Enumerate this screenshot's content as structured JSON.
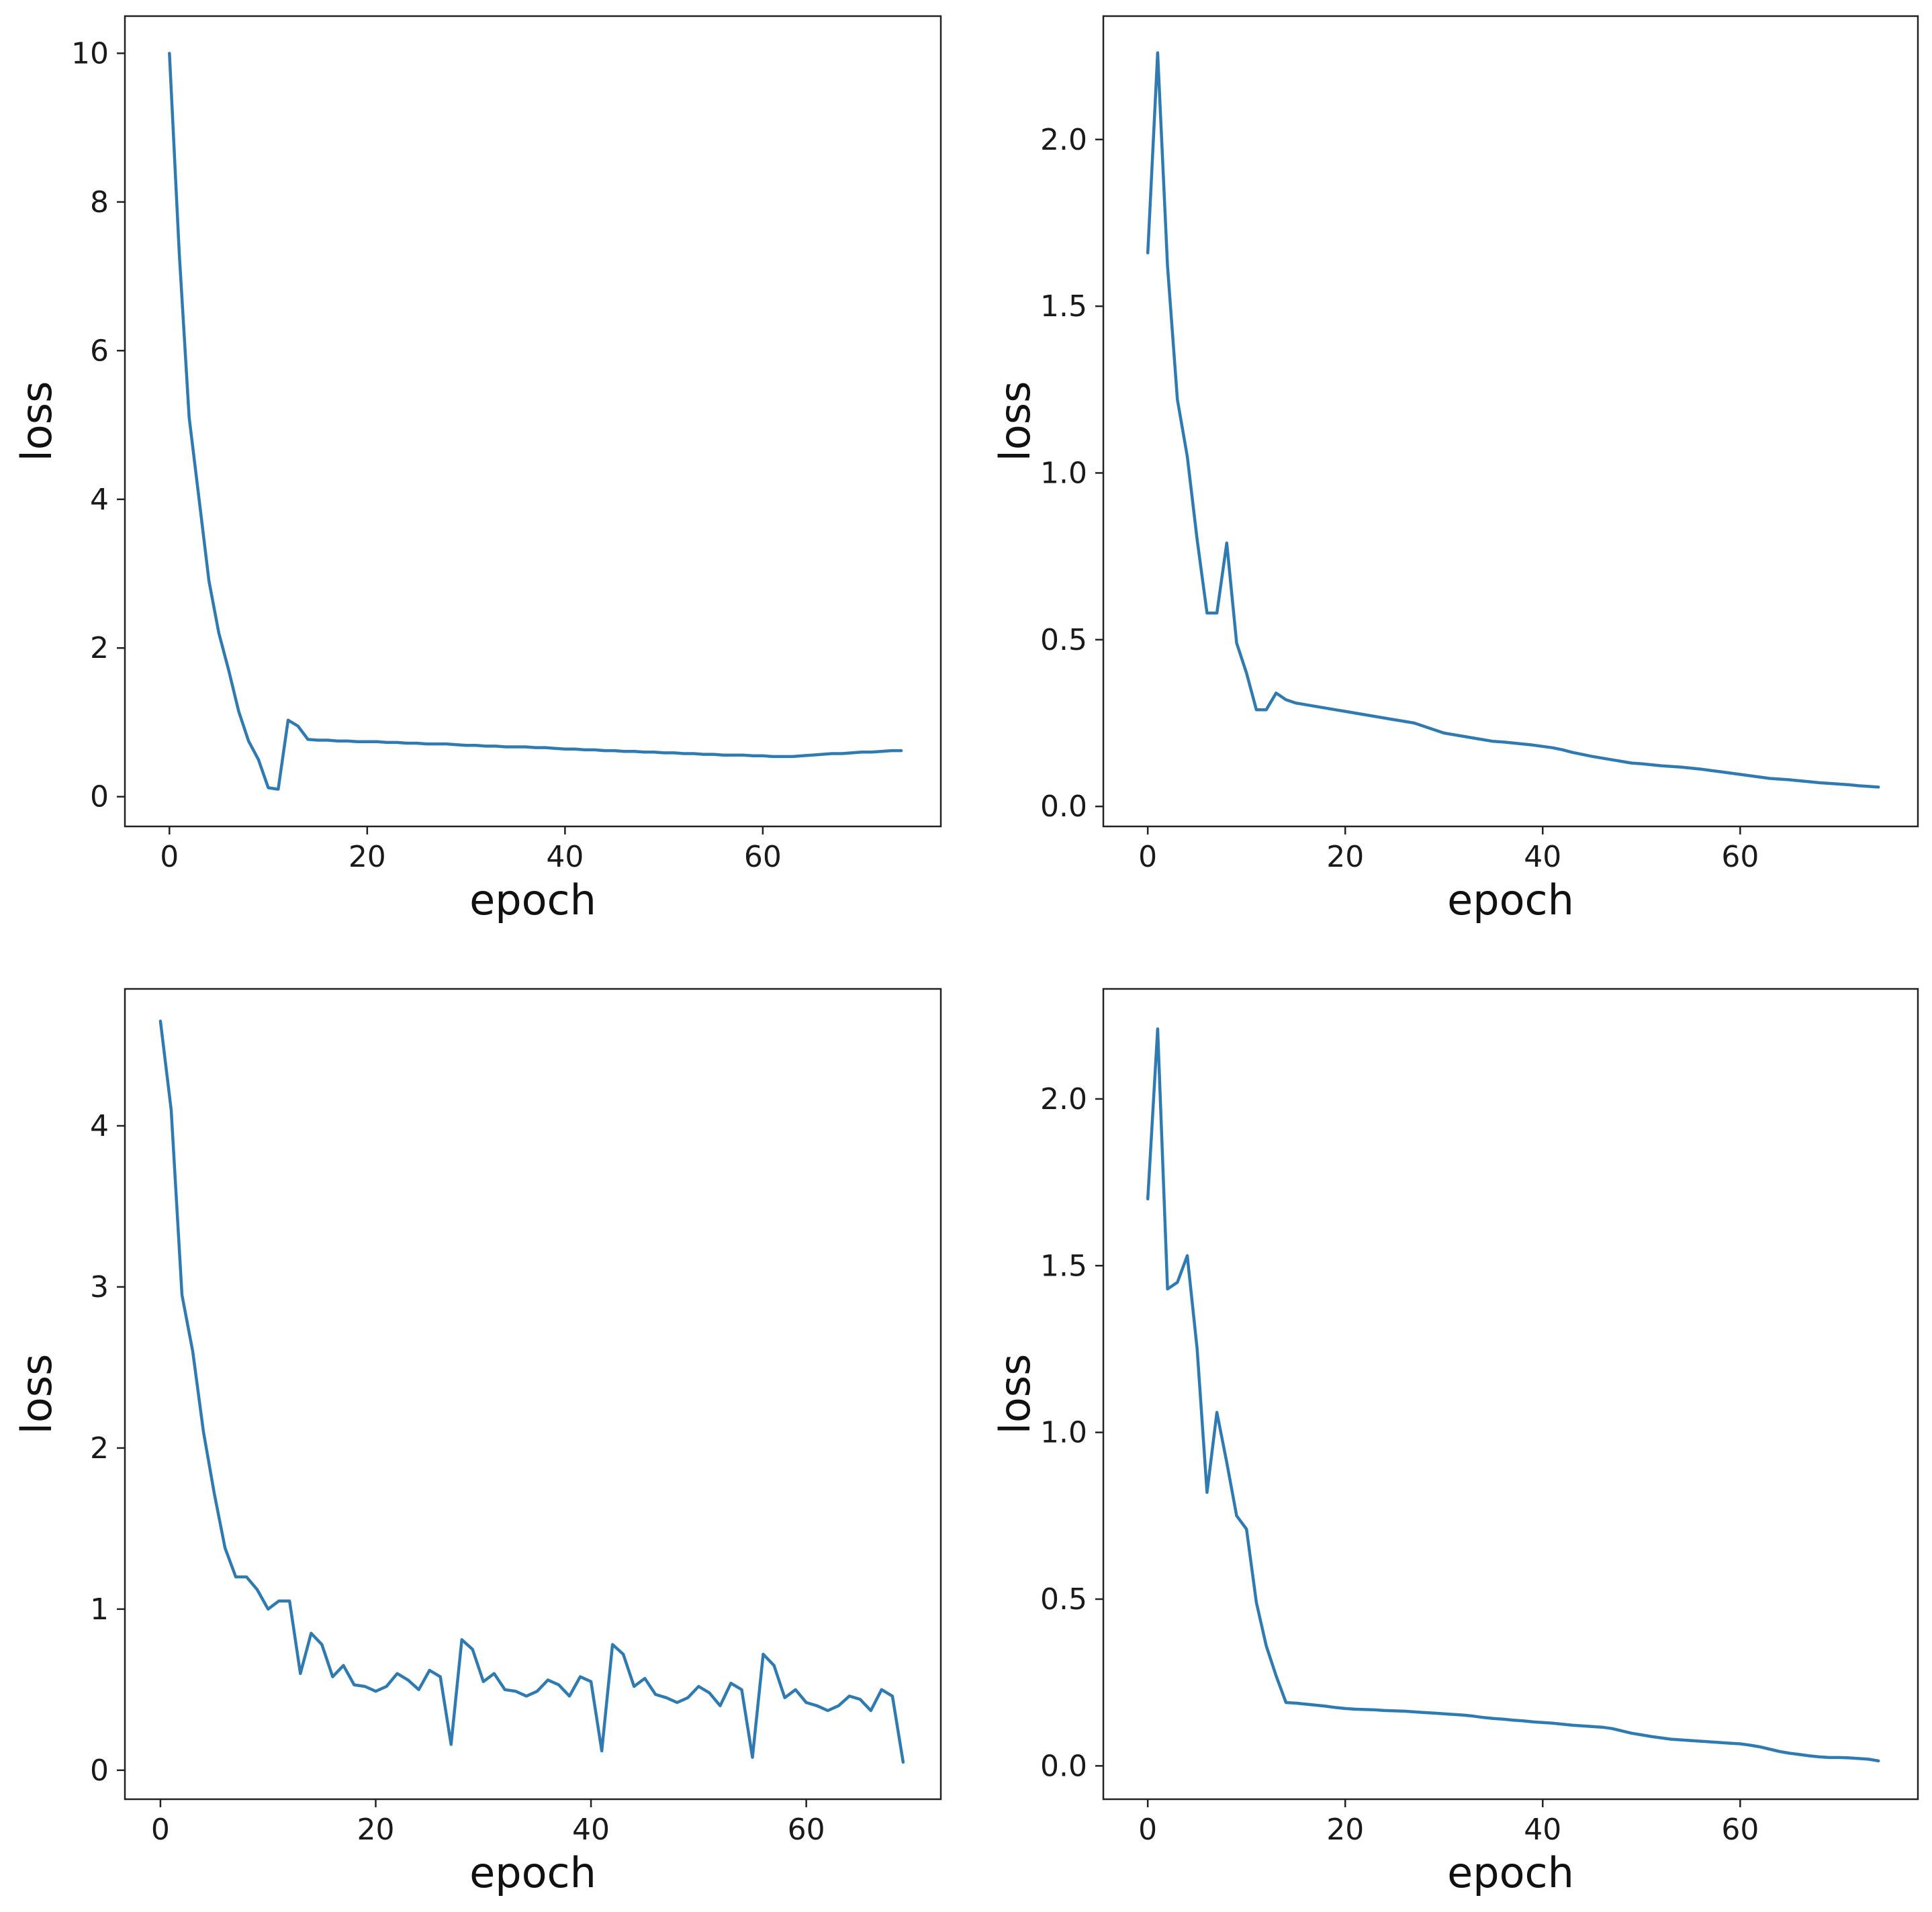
{
  "colors": {
    "line": "#2f7bb1",
    "axis": "#222222",
    "text": "#1a1a1a"
  },
  "chart_data": [
    {
      "type": "line",
      "position": "top-left",
      "xlabel": "epoch",
      "ylabel": "loss",
      "xlim": [
        -4.5,
        78
      ],
      "ylim": [
        -0.4,
        10.5
      ],
      "xticks": [
        0,
        20,
        40,
        60
      ],
      "xtick_labels": [
        "0",
        "20",
        "40",
        "60"
      ],
      "yticks": [
        0,
        2,
        4,
        6,
        8,
        10
      ],
      "ytick_labels": [
        "0",
        "2",
        "4",
        "6",
        "8",
        "10"
      ],
      "series": [
        {
          "name": "loss",
          "x": [
            0,
            1,
            2,
            3,
            4,
            5,
            6,
            7,
            8,
            9,
            10,
            11,
            12,
            13,
            14,
            15,
            16,
            17,
            18,
            19,
            20,
            21,
            22,
            23,
            24,
            25,
            26,
            27,
            28,
            29,
            30,
            31,
            32,
            33,
            34,
            35,
            36,
            37,
            38,
            39,
            40,
            41,
            42,
            43,
            44,
            45,
            46,
            47,
            48,
            49,
            50,
            51,
            52,
            53,
            54,
            55,
            56,
            57,
            58,
            59,
            60,
            61,
            62,
            63,
            64,
            65,
            66,
            67,
            68,
            69,
            70,
            71,
            72,
            73,
            74
          ],
          "values": [
            10.0,
            7.3,
            5.1,
            4.0,
            2.9,
            2.2,
            1.7,
            1.15,
            0.75,
            0.5,
            0.12,
            0.1,
            1.03,
            0.95,
            0.77,
            0.76,
            0.76,
            0.75,
            0.75,
            0.74,
            0.74,
            0.74,
            0.73,
            0.73,
            0.72,
            0.72,
            0.71,
            0.71,
            0.71,
            0.7,
            0.69,
            0.69,
            0.68,
            0.68,
            0.67,
            0.67,
            0.67,
            0.66,
            0.66,
            0.65,
            0.64,
            0.64,
            0.63,
            0.63,
            0.62,
            0.62,
            0.61,
            0.61,
            0.6,
            0.6,
            0.59,
            0.59,
            0.58,
            0.58,
            0.57,
            0.57,
            0.56,
            0.56,
            0.56,
            0.55,
            0.55,
            0.54,
            0.54,
            0.54,
            0.55,
            0.56,
            0.57,
            0.58,
            0.58,
            0.59,
            0.6,
            0.6,
            0.61,
            0.62,
            0.62
          ]
        }
      ]
    },
    {
      "type": "line",
      "position": "top-right",
      "xlabel": "epoch",
      "ylabel": "loss",
      "xlim": [
        -4.5,
        78
      ],
      "ylim": [
        -0.06,
        2.37
      ],
      "xticks": [
        0,
        20,
        40,
        60
      ],
      "xtick_labels": [
        "0",
        "20",
        "40",
        "60"
      ],
      "yticks": [
        0.0,
        0.5,
        1.0,
        1.5,
        2.0
      ],
      "ytick_labels": [
        "0.0",
        "0.5",
        "1.0",
        "1.5",
        "2.0"
      ],
      "series": [
        {
          "name": "loss",
          "x": [
            0,
            1,
            2,
            3,
            4,
            5,
            6,
            7,
            8,
            9,
            10,
            11,
            12,
            13,
            14,
            15,
            16,
            17,
            18,
            19,
            20,
            21,
            22,
            23,
            24,
            25,
            26,
            27,
            28,
            29,
            30,
            31,
            32,
            33,
            34,
            35,
            36,
            37,
            38,
            39,
            40,
            41,
            42,
            43,
            44,
            45,
            46,
            47,
            48,
            49,
            50,
            51,
            52,
            53,
            54,
            55,
            56,
            57,
            58,
            59,
            60,
            61,
            62,
            63,
            64,
            65,
            66,
            67,
            68,
            69,
            70,
            71,
            72,
            73,
            74
          ],
          "values": [
            1.66,
            2.26,
            1.62,
            1.22,
            1.05,
            0.8,
            0.58,
            0.58,
            0.79,
            0.49,
            0.4,
            0.29,
            0.29,
            0.34,
            0.32,
            0.31,
            0.305,
            0.3,
            0.295,
            0.29,
            0.285,
            0.28,
            0.275,
            0.27,
            0.265,
            0.26,
            0.255,
            0.25,
            0.24,
            0.23,
            0.22,
            0.215,
            0.21,
            0.205,
            0.2,
            0.195,
            0.193,
            0.19,
            0.187,
            0.184,
            0.18,
            0.176,
            0.17,
            0.162,
            0.156,
            0.15,
            0.145,
            0.14,
            0.135,
            0.13,
            0.128,
            0.125,
            0.122,
            0.12,
            0.118,
            0.115,
            0.112,
            0.108,
            0.104,
            0.1,
            0.096,
            0.092,
            0.088,
            0.084,
            0.082,
            0.08,
            0.077,
            0.074,
            0.071,
            0.069,
            0.067,
            0.065,
            0.062,
            0.06,
            0.058
          ]
        }
      ]
    },
    {
      "type": "line",
      "position": "bottom-left",
      "xlabel": "epoch",
      "ylabel": "loss",
      "xlim": [
        -3.3,
        72.5
      ],
      "ylim": [
        -0.18,
        4.85
      ],
      "xticks": [
        0,
        20,
        40,
        60
      ],
      "xtick_labels": [
        "0",
        "20",
        "40",
        "60"
      ],
      "yticks": [
        0,
        1,
        2,
        3,
        4
      ],
      "ytick_labels": [
        "0",
        "1",
        "2",
        "3",
        "4"
      ],
      "series": [
        {
          "name": "loss",
          "x": [
            0,
            1,
            2,
            3,
            4,
            5,
            6,
            7,
            8,
            9,
            10,
            11,
            12,
            13,
            14,
            15,
            16,
            17,
            18,
            19,
            20,
            21,
            22,
            23,
            24,
            25,
            26,
            27,
            28,
            29,
            30,
            31,
            32,
            33,
            34,
            35,
            36,
            37,
            38,
            39,
            40,
            41,
            42,
            43,
            44,
            45,
            46,
            47,
            48,
            49,
            50,
            51,
            52,
            53,
            54,
            55,
            56,
            57,
            58,
            59,
            60,
            61,
            62,
            63,
            64,
            65,
            66,
            67,
            68,
            69
          ],
          "values": [
            4.65,
            4.1,
            2.95,
            2.6,
            2.1,
            1.72,
            1.38,
            1.2,
            1.2,
            1.12,
            1.0,
            1.05,
            1.05,
            0.6,
            0.85,
            0.78,
            0.58,
            0.65,
            0.53,
            0.52,
            0.49,
            0.52,
            0.6,
            0.56,
            0.5,
            0.62,
            0.58,
            0.16,
            0.81,
            0.75,
            0.55,
            0.6,
            0.5,
            0.49,
            0.46,
            0.49,
            0.56,
            0.53,
            0.46,
            0.58,
            0.55,
            0.12,
            0.78,
            0.72,
            0.52,
            0.57,
            0.47,
            0.45,
            0.42,
            0.45,
            0.52,
            0.48,
            0.4,
            0.54,
            0.5,
            0.08,
            0.72,
            0.65,
            0.45,
            0.5,
            0.42,
            0.4,
            0.37,
            0.4,
            0.46,
            0.44,
            0.37,
            0.5,
            0.46,
            0.05
          ]
        }
      ]
    },
    {
      "type": "line",
      "position": "bottom-right",
      "xlabel": "epoch",
      "ylabel": "loss",
      "xlim": [
        -4.5,
        78
      ],
      "ylim": [
        -0.1,
        2.33
      ],
      "xticks": [
        0,
        20,
        40,
        60
      ],
      "xtick_labels": [
        "0",
        "20",
        "40",
        "60"
      ],
      "yticks": [
        0.0,
        0.5,
        1.0,
        1.5,
        2.0
      ],
      "ytick_labels": [
        "0.0",
        "0.5",
        "1.0",
        "1.5",
        "2.0"
      ],
      "series": [
        {
          "name": "loss",
          "x": [
            0,
            1,
            2,
            3,
            4,
            5,
            6,
            7,
            8,
            9,
            10,
            11,
            12,
            13,
            14,
            15,
            16,
            17,
            18,
            19,
            20,
            21,
            22,
            23,
            24,
            25,
            26,
            27,
            28,
            29,
            30,
            31,
            32,
            33,
            34,
            35,
            36,
            37,
            38,
            39,
            40,
            41,
            42,
            43,
            44,
            45,
            46,
            47,
            48,
            49,
            50,
            51,
            52,
            53,
            54,
            55,
            56,
            57,
            58,
            59,
            60,
            61,
            62,
            63,
            64,
            65,
            66,
            67,
            68,
            69,
            70,
            71,
            72,
            73,
            74
          ],
          "values": [
            1.7,
            2.21,
            1.43,
            1.45,
            1.53,
            1.25,
            0.82,
            1.06,
            0.91,
            0.75,
            0.71,
            0.49,
            0.36,
            0.27,
            0.19,
            0.188,
            0.185,
            0.182,
            0.179,
            0.175,
            0.172,
            0.17,
            0.169,
            0.168,
            0.166,
            0.165,
            0.164,
            0.162,
            0.16,
            0.158,
            0.156,
            0.154,
            0.152,
            0.149,
            0.145,
            0.142,
            0.14,
            0.137,
            0.135,
            0.132,
            0.13,
            0.128,
            0.125,
            0.122,
            0.12,
            0.118,
            0.116,
            0.112,
            0.105,
            0.098,
            0.093,
            0.088,
            0.084,
            0.08,
            0.078,
            0.076,
            0.074,
            0.072,
            0.07,
            0.068,
            0.066,
            0.062,
            0.057,
            0.05,
            0.043,
            0.038,
            0.034,
            0.03,
            0.027,
            0.025,
            0.025,
            0.024,
            0.022,
            0.02,
            0.015
          ]
        }
      ]
    }
  ]
}
